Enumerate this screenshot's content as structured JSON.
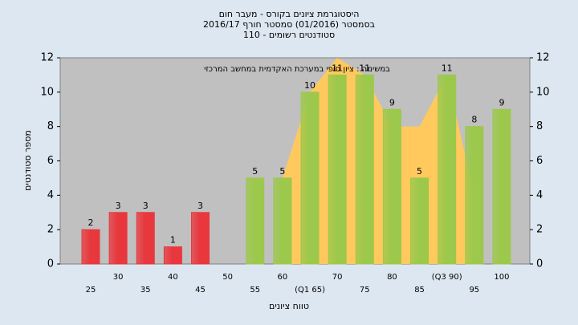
{
  "chart_data": {
    "type": "bar",
    "title": "היסטוגרמת ציונים בקורס - מעבר חום",
    "subtitle": "בסמסטר (01/2016) סמסטר חורף 2016/17",
    "subtitle2": "110 - סטודנטים רשומים",
    "annotation": "במשימה : ציון סופי במערכת האקדמית במחשב המרכזי",
    "ylabel": "מספר סטודנטים",
    "xlabel": "טווח ציונים",
    "categories": [
      "25",
      "30",
      "35",
      "40",
      "45",
      "50",
      "55",
      "60",
      "(Q1 65)",
      "70",
      "75",
      "80",
      "85",
      "(Q3 90)",
      "95",
      "100"
    ],
    "values": [
      2,
      3,
      3,
      1,
      3,
      0,
      5,
      5,
      10,
      11,
      11,
      9,
      5,
      11,
      8,
      9
    ],
    "value_labels": [
      "2",
      "3",
      "3",
      "1",
      "3",
      null,
      "5",
      "5",
      "10",
      "11",
      "11",
      "9",
      "5",
      "11",
      "8",
      "9"
    ],
    "colors": [
      "#e8383d",
      "#e8383d",
      "#e8383d",
      "#e8383d",
      "#e8383d",
      "#e8383d",
      "#9cc84b",
      "#9cc84b",
      "#9cc84b",
      "#9cc84b",
      "#9cc84b",
      "#9cc84b",
      "#9cc84b",
      "#9cc84b",
      "#9cc84b",
      "#9cc84b"
    ],
    "area": {
      "color": "#ffc95e",
      "values": [
        null,
        null,
        null,
        null,
        null,
        null,
        null,
        5,
        10,
        12,
        11,
        8,
        8,
        11,
        4,
        null
      ]
    },
    "ylim": [
      0,
      12
    ],
    "yticks": [
      0,
      2,
      4,
      6,
      8,
      10,
      12
    ],
    "plot_background": "#c0c0c0"
  }
}
